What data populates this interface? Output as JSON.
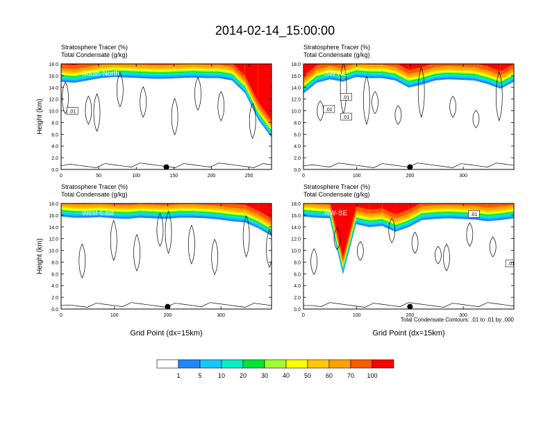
{
  "figure": {
    "title": "2014-02-14_15:00:00",
    "contour_note": "Total Condensate Contours: .01 to .01 by .000"
  },
  "colorbar": {
    "colors": [
      "#ffffff",
      "#1f87ff",
      "#14c8ff",
      "#00f0c8",
      "#00e632",
      "#a0ff32",
      "#ffff00",
      "#ffc800",
      "#ffa000",
      "#ff5a00",
      "#ff0000"
    ],
    "labels": [
      "1",
      "5",
      "10",
      "20",
      "30",
      "40",
      "50",
      "60",
      "70",
      "100"
    ]
  },
  "chart_data": [
    {
      "type": "heatmap",
      "label": "South-North",
      "title_lines": [
        "Stratosphere Tracer   (%)",
        "Total Condensate   (g/kg)"
      ],
      "ylabel": "Height (km)",
      "xlabel": "",
      "xlim": [
        0,
        280
      ],
      "ylim": [
        0,
        18
      ],
      "xticks": [
        0,
        50,
        100,
        150,
        200,
        250
      ],
      "yticks": [
        "0.0",
        "2.0",
        "4.0",
        "6.0",
        "8.0",
        "10.0",
        "12.0",
        "14.0",
        "16.0",
        "18.0"
      ],
      "marker_x": 140,
      "contour_labels": [
        {
          "text": ".01",
          "x": 15,
          "y": 10
        }
      ],
      "tracer_base": [
        15.0,
        14.8,
        15.2,
        15.6,
        15.8,
        15.7,
        15.6,
        15.5,
        15.5,
        15.6,
        15.7,
        15.6,
        15.6,
        15.2,
        13.0,
        8.5,
        5.5
      ]
    },
    {
      "type": "heatmap",
      "label": "SW-NE",
      "title_lines": [
        "Stratosphere Tracer   (%)",
        "Total Condensate   (g/kg)"
      ],
      "ylabel": "",
      "xlabel": "",
      "xlim": [
        0,
        395
      ],
      "ylim": [
        0,
        18
      ],
      "xticks": [
        0,
        100,
        200,
        300
      ],
      "yticks": [
        "0.0",
        "2.0",
        "4.0",
        "6.0",
        "8.0",
        "10.0",
        "12.0",
        "14.0",
        "16.0",
        "18.0"
      ],
      "marker_x": 200,
      "contour_labels": [
        {
          "text": ".01",
          "x": 48,
          "y": 10.3
        },
        {
          "text": ".01",
          "x": 80,
          "y": 12.4
        },
        {
          "text": ".01",
          "x": 80,
          "y": 9
        }
      ],
      "tracer_base": [
        13.0,
        14.8,
        15.4,
        15.0,
        15.8,
        15.6,
        15.6,
        15.2,
        14.0,
        14.5,
        15.2,
        15.4,
        15.3,
        15.2,
        14.6,
        13.8,
        15.0
      ]
    },
    {
      "type": "heatmap",
      "label": "West-East",
      "title_lines": [
        "Stratosphere Tracer   (%)",
        "Total Condensate   (g/kg)"
      ],
      "ylabel": "Height (km)",
      "xlabel": "Grid Point (dx=15km)",
      "xlim": [
        0,
        395
      ],
      "ylim": [
        0,
        18
      ],
      "xticks": [
        0,
        100,
        200,
        300
      ],
      "yticks": [
        "0.0",
        "2.0",
        "4.0",
        "6.0",
        "8.0",
        "10.0",
        "12.0",
        "14.0",
        "16.0",
        "18.0"
      ],
      "marker_x": 200,
      "contour_labels": [],
      "tracer_base": [
        15.8,
        15.6,
        15.6,
        15.7,
        15.5,
        15.4,
        15.6,
        15.5,
        15.4,
        15.6,
        15.6,
        15.5,
        15.3,
        15.0,
        14.8,
        13.8,
        12.5
      ]
    },
    {
      "type": "heatmap",
      "label": "NW-SE",
      "title_lines": [
        "Stratosphere Tracer   (%)",
        "Total Condensate   (g/kg)"
      ],
      "ylabel": "",
      "xlabel": "Grid Point (dx=15km)",
      "xlim": [
        0,
        395
      ],
      "ylim": [
        0,
        18
      ],
      "xticks": [
        0,
        100,
        200,
        300
      ],
      "yticks": [
        "0.0",
        "2.0",
        "4.0",
        "6.0",
        "8.0",
        "10.0",
        "12.0",
        "14.0",
        "16.0",
        "18.0"
      ],
      "marker_x": 200,
      "contour_labels": [
        {
          "text": ".01",
          "x": 320,
          "y": 16.2
        },
        {
          "text": ".01",
          "x": 390,
          "y": 7.8
        }
      ],
      "tracer_base": [
        15.8,
        15.6,
        15.5,
        6.0,
        14.5,
        14.0,
        14.2,
        13.2,
        14.0,
        15.2,
        15.4,
        15.5,
        15.4,
        15.3,
        15.0,
        15.2,
        15.5
      ]
    }
  ]
}
